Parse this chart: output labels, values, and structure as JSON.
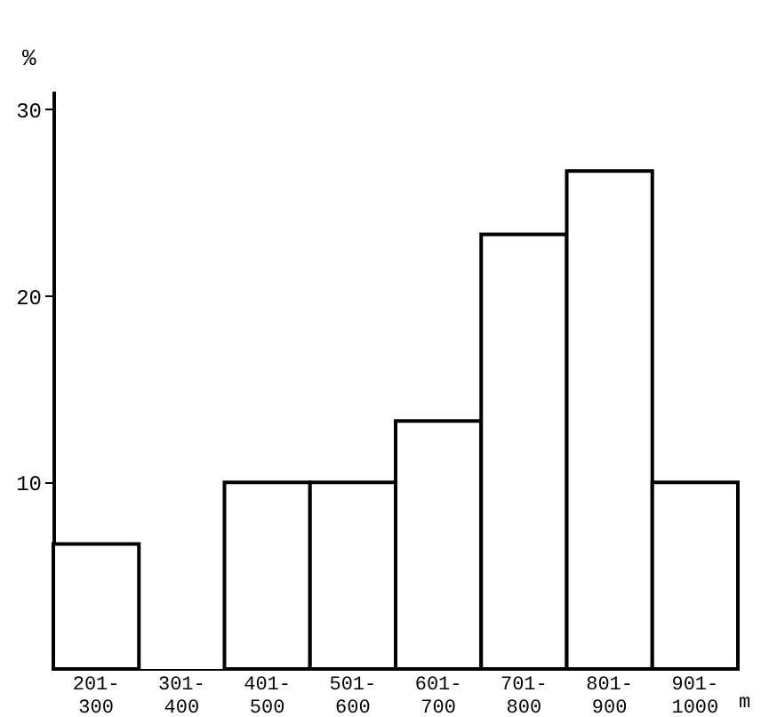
{
  "chart_data": {
    "type": "bar",
    "ylabel": "%",
    "xlabel": "m",
    "categories": [
      "201-300",
      "301-400",
      "401-500",
      "501-600",
      "601-700",
      "701-800",
      "801-900",
      "901-1000"
    ],
    "values": [
      6.7,
      0,
      10,
      10,
      13.3,
      23.3,
      26.7,
      10
    ],
    "color": "#ffffff",
    "ylim": [
      0,
      31
    ],
    "yticks": [
      10,
      20,
      30
    ],
    "grid": false
  }
}
